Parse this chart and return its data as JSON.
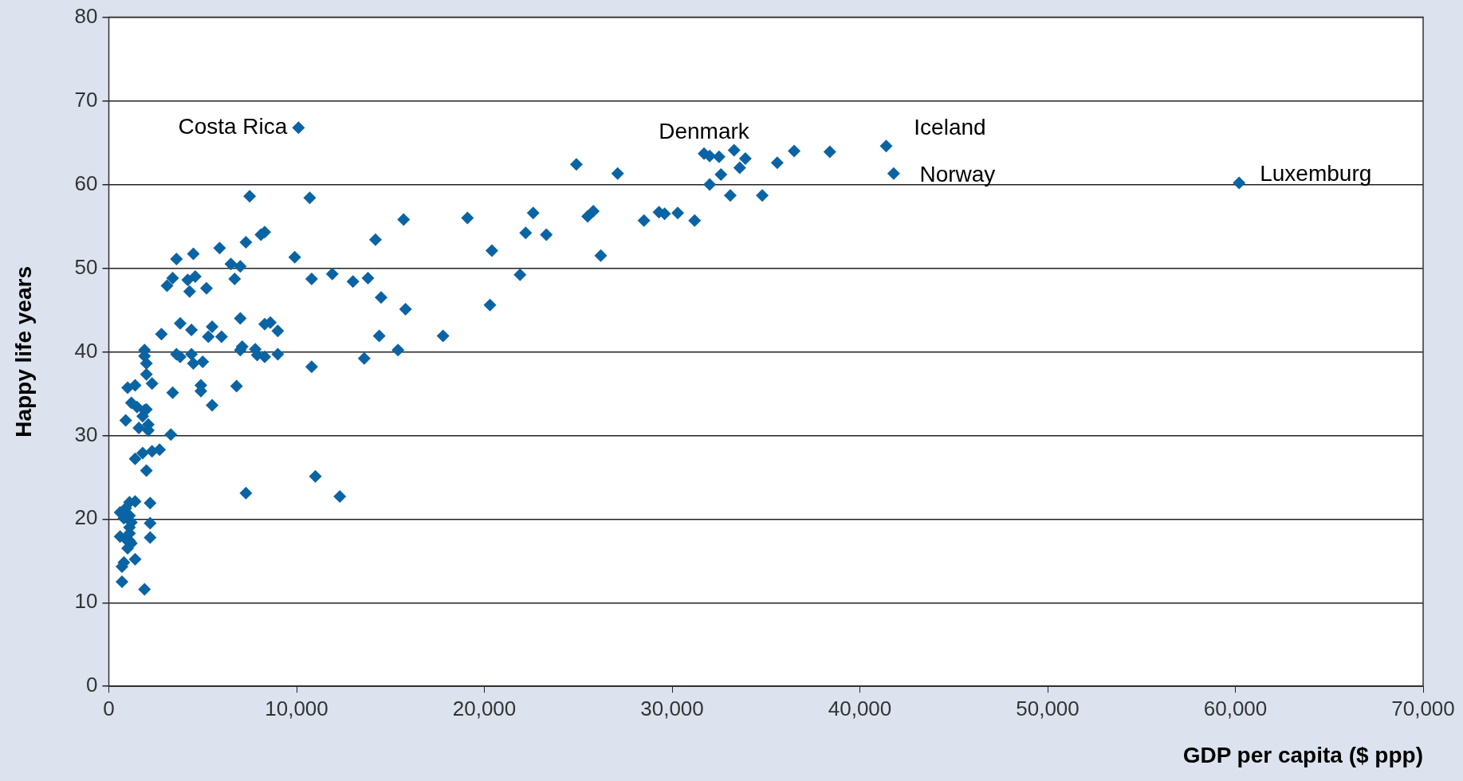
{
  "chart_data": {
    "type": "scatter",
    "xlabel": "GDP per capita ($ ppp)",
    "ylabel": "Happy life years",
    "xlim": [
      0,
      70000
    ],
    "ylim": [
      0,
      80
    ],
    "xticks": [
      0,
      {
        "value": 10000,
        "label": "10,000"
      },
      {
        "value": 20000,
        "label": "20,000"
      },
      {
        "value": 30000,
        "label": "30,000"
      },
      {
        "value": 40000,
        "label": "40,000"
      },
      {
        "value": 50000,
        "label": "50,000"
      },
      {
        "value": 60000,
        "label": "60,000"
      },
      {
        "value": 70000,
        "label": "70,000"
      }
    ],
    "yticks": [
      0,
      10,
      20,
      30,
      40,
      50,
      60,
      70,
      80
    ],
    "grid": "y",
    "legend": false,
    "marker": "diamond",
    "annotations": [
      {
        "text": "Costa Rica",
        "x": 10100,
        "y": 66.8
      },
      {
        "text": "Denmark",
        "x": 31700,
        "y": 63.7
      },
      {
        "text": "Iceland",
        "x": 41400,
        "y": 64.6
      },
      {
        "text": "Norway",
        "x": 41800,
        "y": 61.3
      },
      {
        "text": "Luxemburg",
        "x": 60200,
        "y": 60.2
      }
    ],
    "series": [
      {
        "color": "#0a64a4",
        "x": [
          10100,
          31700,
          32000,
          32500,
          33300,
          33900,
          33600,
          32600,
          32000,
          33100,
          34800,
          35600,
          36500,
          38400,
          41400,
          41800,
          60200,
          24900,
          27100,
          19100,
          22600,
          22200,
          23300,
          20400,
          21900,
          20300,
          25500,
          25800,
          26200,
          28500,
          29300,
          29600,
          30300,
          31200,
          17800,
          10700,
          7500,
          7300,
          11000,
          12300,
          14200,
          15700,
          11900,
          10800,
          13000,
          13800,
          14500,
          15800,
          14400,
          15400,
          13600,
          10800,
          9900,
          8300,
          8100,
          7300,
          5900,
          6500,
          7000,
          6700,
          8600,
          8300,
          9000,
          7000,
          7100,
          7000,
          7800,
          7900,
          8300,
          9000,
          6800,
          4500,
          3600,
          3400,
          3100,
          4200,
          4600,
          4300,
          5200,
          3800,
          2800,
          4400,
          5500,
          5300,
          6000,
          3600,
          3800,
          4400,
          4500,
          5000,
          4900,
          4900,
          5500,
          3400,
          3300,
          1900,
          1900,
          2000,
          2000,
          2300,
          1000,
          1400,
          900,
          1200,
          1500,
          1900,
          2000,
          1800,
          2100,
          2100,
          1600,
          1400,
          1800,
          2300,
          2700,
          2000,
          2200,
          2200,
          2200,
          1400,
          1900,
          700,
          700,
          800,
          600,
          900,
          1100,
          1400,
          800,
          1100,
          1200,
          1100,
          1100,
          600,
          900,
          1100,
          1000,
          1200
        ],
        "values": [
          66.8,
          63.7,
          63.4,
          63.3,
          64.1,
          63.1,
          62.0,
          61.2,
          60.0,
          58.7,
          58.7,
          62.6,
          64.0,
          63.9,
          64.6,
          61.3,
          60.2,
          62.4,
          61.3,
          56.0,
          56.6,
          54.2,
          54.0,
          52.1,
          49.2,
          45.6,
          56.2,
          56.8,
          51.5,
          55.7,
          56.7,
          56.5,
          56.6,
          55.7,
          41.9,
          58.4,
          58.6,
          23.1,
          25.1,
          22.7,
          53.4,
          55.8,
          49.3,
          48.7,
          48.4,
          48.8,
          46.5,
          45.1,
          41.9,
          40.2,
          39.2,
          38.2,
          51.3,
          54.3,
          54.0,
          53.1,
          52.4,
          50.5,
          50.2,
          48.7,
          43.5,
          43.3,
          42.5,
          44.0,
          40.6,
          40.2,
          40.3,
          39.6,
          39.4,
          39.7,
          35.9,
          51.7,
          51.1,
          48.8,
          47.9,
          48.6,
          49.0,
          47.2,
          47.6,
          43.4,
          42.1,
          42.6,
          43.0,
          41.8,
          41.8,
          39.7,
          39.4,
          39.7,
          38.6,
          38.8,
          36.0,
          35.3,
          33.6,
          35.1,
          30.1,
          40.2,
          39.5,
          38.6,
          37.3,
          36.2,
          35.7,
          36.0,
          31.8,
          33.9,
          33.4,
          33.0,
          33.1,
          32.3,
          31.3,
          30.6,
          30.9,
          27.2,
          27.9,
          28.1,
          28.3,
          25.8,
          21.9,
          19.5,
          17.8,
          15.2,
          11.6,
          12.5,
          14.3,
          14.8,
          20.8,
          21.3,
          22.0,
          22.1,
          20.1,
          20.4,
          19.6,
          19.0,
          18.3,
          17.9,
          17.6,
          17.4,
          16.5,
          17.1
        ]
      }
    ]
  }
}
